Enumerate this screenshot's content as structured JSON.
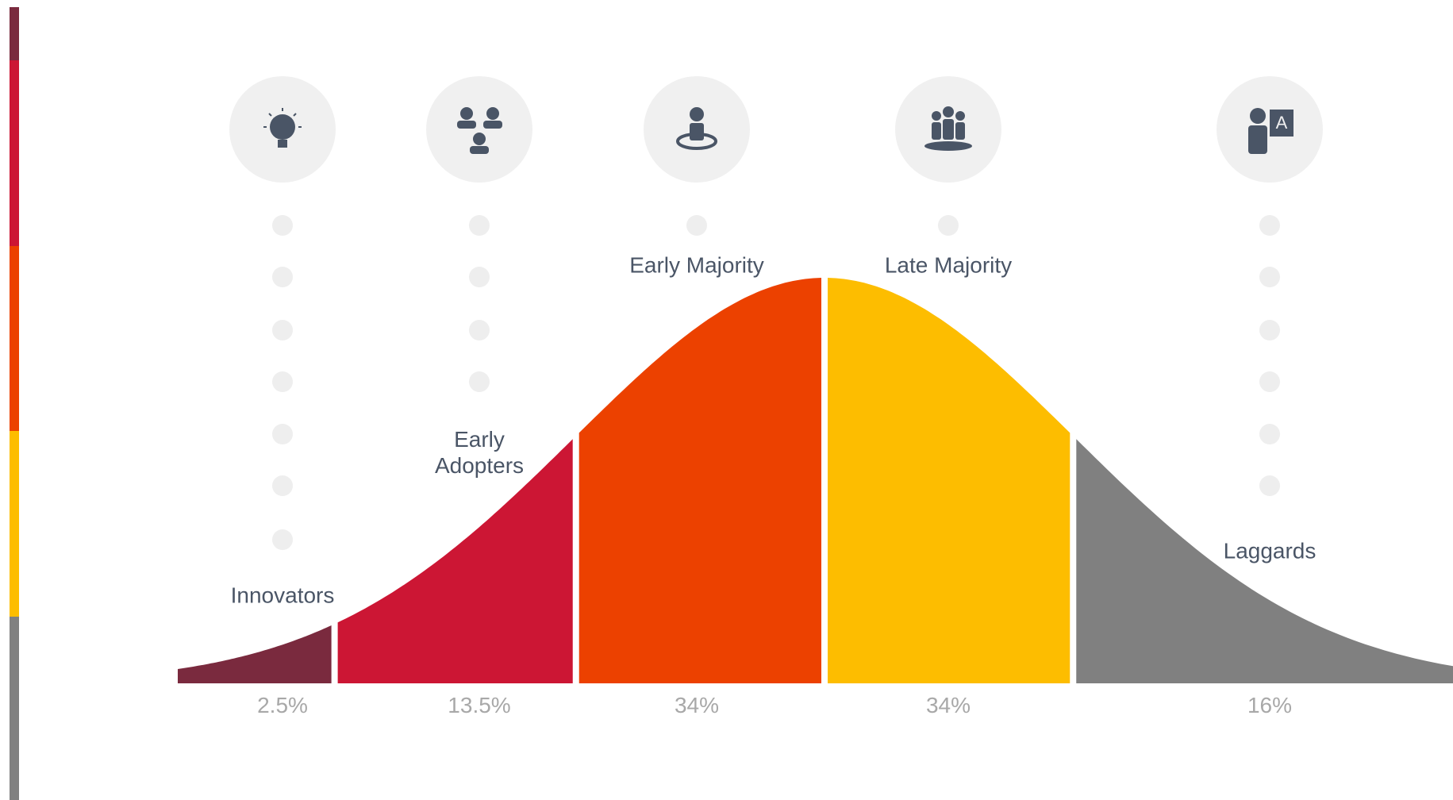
{
  "chart_data": {
    "type": "bell-curve",
    "categories": [
      "Innovators",
      "Early Adopters",
      "Early Majority",
      "Late Majority",
      "Laggards"
    ],
    "values": [
      2.5,
      13.5,
      34,
      34,
      16
    ],
    "value_labels": [
      "2.5%",
      "13.5%",
      "34%",
      "34%",
      "16%"
    ],
    "colors": [
      "#7a2a3e",
      "#cc1634",
      "#ec4100",
      "#fdbd00",
      "#808080"
    ]
  }
}
